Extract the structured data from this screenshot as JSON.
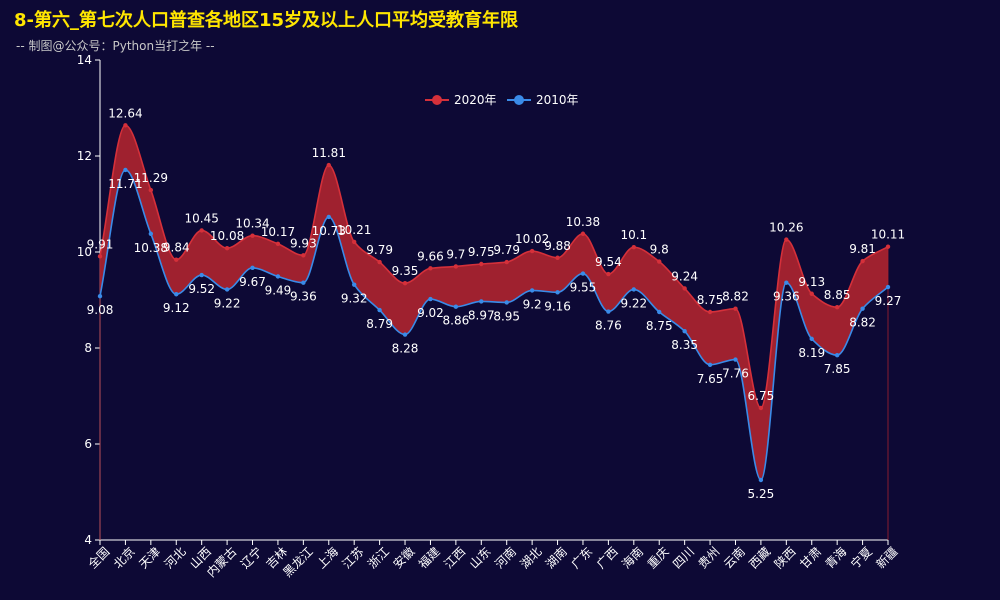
{
  "title": "8-第六_第七次人口普查各地区15岁及以上人口平均受教育年限",
  "subtitle": "-- 制图@公众号：Python当打之年 --",
  "colors": {
    "background": "#0d0935",
    "title": "#ffe600",
    "series_2020": "#d5303a",
    "series_2010": "#3a8be8",
    "area_fill": "#a8232f",
    "axis": "#ffffff",
    "label": "#ffffff"
  },
  "chart_data": {
    "type": "line",
    "title": "8-第六_第七次人口普查各地区15岁及以上人口平均受教育年限",
    "subtitle": "-- 制图@公众号：Python当打之年 --",
    "categories": [
      "全国",
      "北京",
      "天津",
      "河北",
      "山西",
      "内蒙古",
      "辽宁",
      "吉林",
      "黑龙江",
      "上海",
      "江苏",
      "浙江",
      "安徽",
      "福建",
      "江西",
      "山东",
      "河南",
      "湖北",
      "湖南",
      "广东",
      "广西",
      "海南",
      "重庆",
      "四川",
      "贵州",
      "云南",
      "西藏",
      "陕西",
      "甘肃",
      "青海",
      "宁夏",
      "新疆"
    ],
    "series": [
      {
        "name": "2020年",
        "values": [
          9.91,
          12.64,
          11.29,
          9.84,
          10.45,
          10.08,
          10.34,
          10.17,
          9.93,
          11.81,
          10.21,
          9.79,
          9.35,
          9.66,
          9.7,
          9.75,
          9.79,
          10.02,
          9.88,
          10.38,
          9.54,
          10.1,
          9.8,
          9.24,
          8.75,
          8.82,
          6.75,
          10.26,
          9.13,
          8.85,
          9.81,
          10.11
        ]
      },
      {
        "name": "2010年",
        "values": [
          9.08,
          11.71,
          10.38,
          9.12,
          9.52,
          9.22,
          9.67,
          9.49,
          9.36,
          10.73,
          9.32,
          8.79,
          8.28,
          9.02,
          8.86,
          8.97,
          8.95,
          9.2,
          9.16,
          9.55,
          8.76,
          9.22,
          8.75,
          8.35,
          7.65,
          7.76,
          5.25,
          9.36,
          8.19,
          7.85,
          8.82,
          9.27
        ]
      }
    ],
    "xlabel": "",
    "ylabel": "",
    "ylim": [
      4,
      14
    ],
    "yticks": [
      4,
      6,
      8,
      10,
      12,
      14
    ],
    "grid": false,
    "legend_position": "top-center",
    "smooth": true,
    "fill_between": true
  }
}
